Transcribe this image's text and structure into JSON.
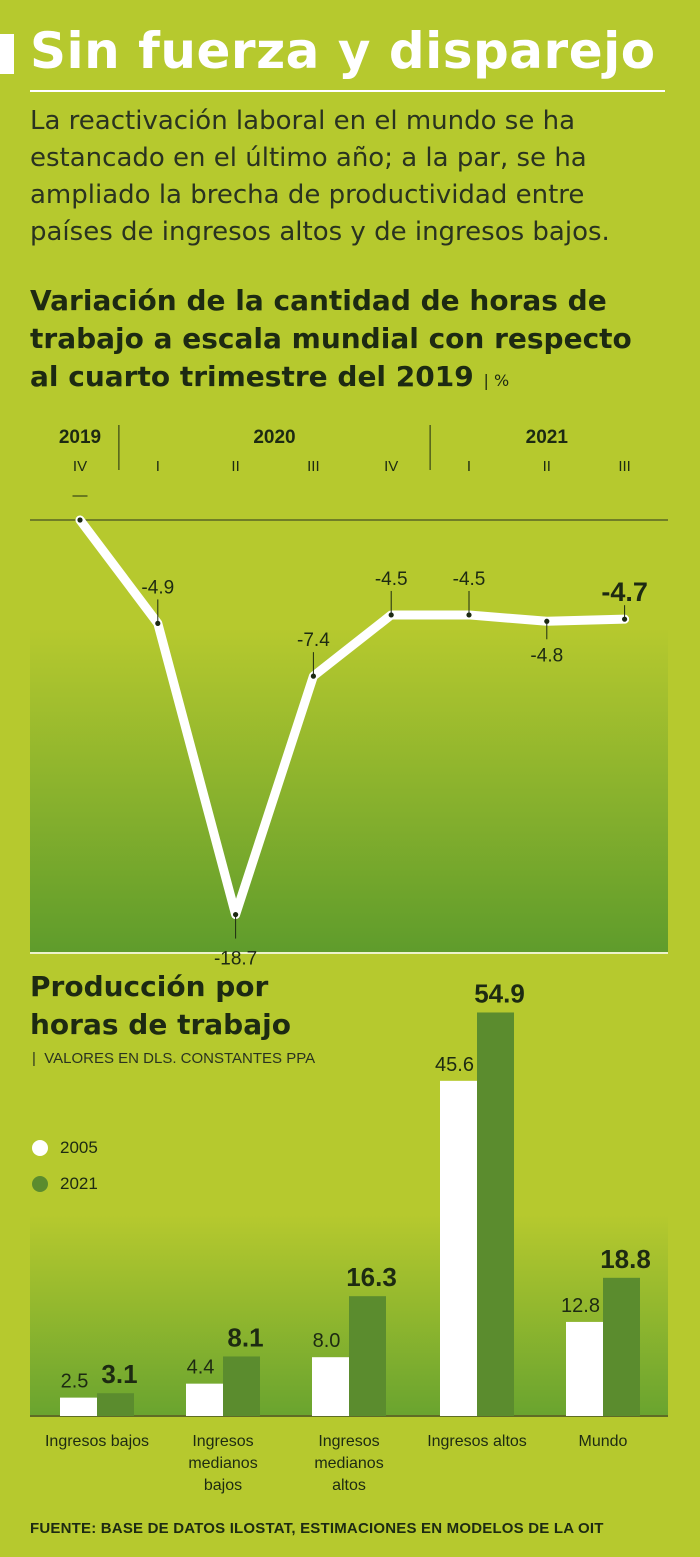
{
  "title": "Sin fuerza y disparejo",
  "subtitle": "La reactivación laboral en el mundo se ha estancado en el último año; a la par, se ha ampliado la brecha de productividad entre países de ingresos altos y de ingresos bajos.",
  "source": "FUENTE: BASE DE DATOS ILOSTAT, ESTIMACIONES EN MODELOS DE LA OIT",
  "colors": {
    "background": "#b6c92e",
    "gradient_bottom": "#5f9c2c",
    "bar_2005": "#ffffff",
    "bar_2021": "#5b8c2e",
    "line": "#ffffff"
  },
  "chart_data": [
    {
      "type": "line",
      "title": "Variación de la cantidad de horas de trabajo a escala mundial con respecto al cuarto trimestre del 2019",
      "unit": "%",
      "years": [
        {
          "label": "2019",
          "quarters": [
            "IV"
          ]
        },
        {
          "label": "2020",
          "quarters": [
            "I",
            "II",
            "III",
            "IV"
          ]
        },
        {
          "label": "2021",
          "quarters": [
            "I",
            "II",
            "III"
          ]
        }
      ],
      "x": [
        "IV 2019",
        "I 2020",
        "II 2020",
        "III 2020",
        "IV 2020",
        "I 2021",
        "II 2021",
        "III 2021"
      ],
      "values": [
        0,
        -4.9,
        -18.7,
        -7.4,
        -4.5,
        -4.5,
        -4.8,
        -4.7
      ],
      "labels": [
        "—",
        "-4.9",
        "-18.7",
        "-7.4",
        "-4.5",
        "-4.5",
        "-4.8",
        "-4.7"
      ],
      "ylim": [
        -20,
        0
      ]
    },
    {
      "type": "bar",
      "title": "Producción por horas de trabajo",
      "subtitle": "VALORES EN DLS. CONSTANTES PPA",
      "categories": [
        "Ingresos bajos",
        "Ingresos medianos bajos",
        "Ingresos medianos altos",
        "Ingresos altos",
        "Mundo"
      ],
      "category_lines": [
        [
          "Ingresos bajos"
        ],
        [
          "Ingresos",
          "medianos",
          "bajos"
        ],
        [
          "Ingresos",
          "medianos",
          "altos"
        ],
        [
          "Ingresos altos"
        ],
        [
          "Mundo"
        ]
      ],
      "series": [
        {
          "name": "2005",
          "values": [
            2.5,
            4.4,
            8.0,
            45.6,
            12.8
          ],
          "labels": [
            "2.5",
            "4.4",
            "8.0",
            "45.6",
            "12.8"
          ]
        },
        {
          "name": "2021",
          "values": [
            3.1,
            8.1,
            16.3,
            54.9,
            18.8
          ],
          "labels": [
            "3.1",
            "8.1",
            "16.3",
            "54.9",
            "18.8"
          ]
        }
      ],
      "ylim": [
        0,
        60
      ]
    }
  ]
}
